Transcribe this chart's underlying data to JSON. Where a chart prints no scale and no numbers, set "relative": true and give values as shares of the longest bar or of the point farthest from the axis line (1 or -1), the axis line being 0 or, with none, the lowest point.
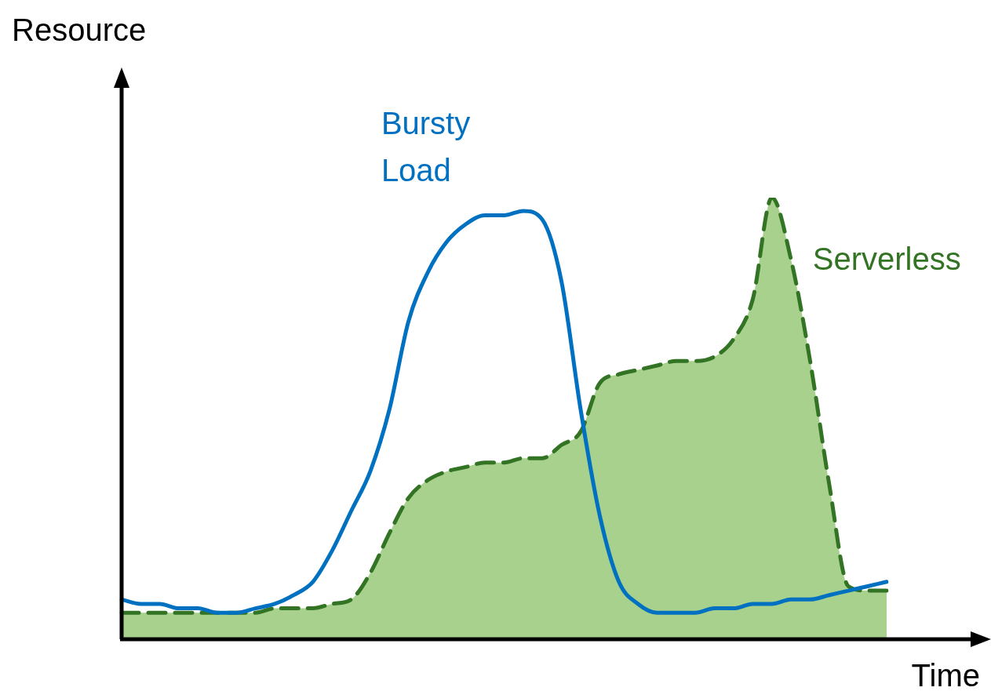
{
  "chart_data": {
    "type": "line",
    "xlabel": "Time",
    "ylabel": "Resource",
    "relative": true,
    "legend": false,
    "marker": "none",
    "categories": [
      null,
      null,
      null,
      null,
      null,
      null,
      null,
      null,
      null,
      null,
      null,
      null,
      null,
      null,
      null,
      null,
      null,
      null,
      null,
      null,
      null,
      null,
      null,
      null,
      null,
      null,
      null,
      null,
      null,
      null,
      null,
      null,
      null,
      null,
      null,
      null,
      null,
      null,
      null,
      null,
      null
    ],
    "series": [
      {
        "name": "Serverless",
        "type": "area",
        "color": "#a9d18e",
        "line_style": "dashed",
        "values": [
          0.06,
          0.06,
          0.06,
          0.06,
          0.06,
          0.06,
          0.06,
          0.06,
          0.07,
          0.07,
          0.07,
          0.08,
          0.09,
          0.15,
          0.24,
          0.32,
          0.36,
          0.38,
          0.39,
          0.4,
          0.4,
          0.41,
          0.41,
          0.44,
          0.47,
          0.58,
          0.6,
          0.61,
          0.62,
          0.63,
          0.63,
          0.64,
          0.68,
          0.77,
          1,
          0.86,
          0.63,
          0.35,
          0.12,
          0.11,
          0.11
        ]
      },
      {
        "name": "Bursty Load",
        "type": "line",
        "color": "#0070c0",
        "line_style": "solid",
        "values": [
          0.09,
          0.08,
          0.08,
          0.07,
          0.07,
          0.06,
          0.06,
          0.07,
          0.08,
          0.1,
          0.13,
          0.2,
          0.29,
          0.38,
          0.52,
          0.72,
          0.83,
          0.9,
          0.94,
          0.96,
          0.96,
          0.97,
          0.95,
          0.81,
          0.52,
          0.28,
          0.13,
          0.08,
          0.06,
          0.06,
          0.06,
          0.07,
          0.07,
          0.08,
          0.08,
          0.09,
          0.09,
          0.1,
          0.11,
          0.12,
          0.13
        ]
      }
    ]
  }
}
